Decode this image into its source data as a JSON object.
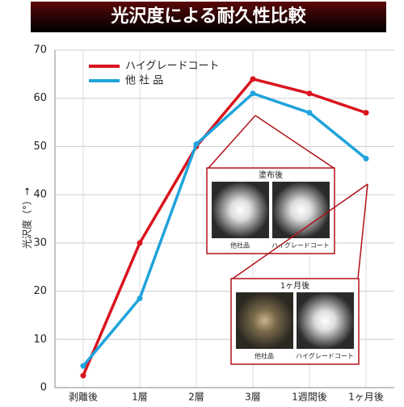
{
  "chart_data": {
    "type": "line",
    "title": "光沢度による耐久性比較",
    "y_label": "光沢度（°）→",
    "categories": [
      "剥離後",
      "1層",
      "2層",
      "3層",
      "1週間後",
      "1ヶ月後"
    ],
    "series": [
      {
        "name": "ハイグレードコート",
        "color": "#d9141e",
        "values": [
          2.5,
          30,
          50,
          64,
          61,
          57
        ]
      },
      {
        "name": "他 社 品",
        "color": "#1fa3dc",
        "values": [
          4.5,
          18.5,
          50.5,
          61,
          57,
          47.5
        ]
      }
    ],
    "ylim": [
      0,
      70
    ],
    "yticks": [
      0,
      10,
      20,
      30,
      40,
      50,
      60,
      70
    ],
    "grid": true,
    "insets": [
      {
        "title": "塗布後",
        "labels": [
          "他社品",
          "ハイグレードコート"
        ]
      },
      {
        "title": "1ヶ月後",
        "labels": [
          "他社品",
          "ハイグレードコート"
        ]
      }
    ]
  }
}
